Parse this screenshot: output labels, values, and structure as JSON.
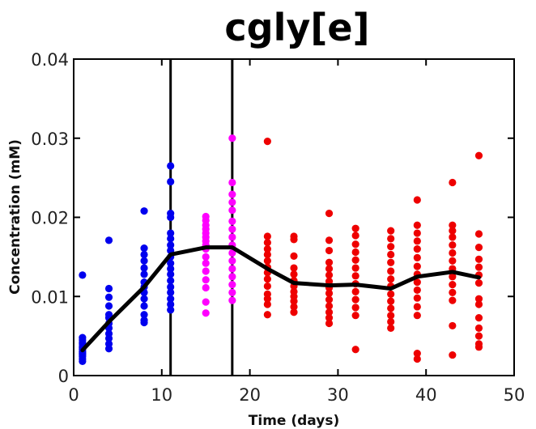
{
  "chart_data": {
    "type": "scatter",
    "title": "cgly[e]",
    "xlabel": "Time (days)",
    "ylabel": "Concentration (mM)",
    "xlim": [
      0,
      50
    ],
    "ylim": [
      0,
      0.04
    ],
    "x_ticks": [
      0,
      10,
      20,
      30,
      40,
      50
    ],
    "y_ticks": [
      0,
      0.01,
      0.02,
      0.03,
      0.04
    ],
    "x_tick_labels": [
      "0",
      "10",
      "20",
      "30",
      "40",
      "50"
    ],
    "y_tick_labels": [
      "0",
      "0.01",
      "0.02",
      "0.03",
      "0.04"
    ],
    "grid": false,
    "legend": "none",
    "vertical_lines": [
      11,
      18
    ],
    "colors": {
      "blue": "#0000ee",
      "magenta": "#ff00ff",
      "red": "#ee0000",
      "line": "#000000"
    },
    "series": [
      {
        "color": "blue",
        "points": [
          [
            1,
            0.0127
          ],
          [
            1,
            0.0048
          ],
          [
            1,
            0.0045
          ],
          [
            1,
            0.0042
          ],
          [
            1,
            0.004
          ],
          [
            1,
            0.0037
          ],
          [
            1,
            0.0035
          ],
          [
            1,
            0.0033
          ],
          [
            1,
            0.003
          ],
          [
            1,
            0.0028
          ],
          [
            1,
            0.0026
          ],
          [
            1,
            0.0024
          ],
          [
            1,
            0.0021
          ],
          [
            1,
            0.0018
          ],
          [
            4,
            0.0171
          ],
          [
            4,
            0.011
          ],
          [
            4,
            0.0099
          ],
          [
            4,
            0.0088
          ],
          [
            4,
            0.0077
          ],
          [
            4,
            0.0073
          ],
          [
            4,
            0.0066
          ],
          [
            4,
            0.006
          ],
          [
            4,
            0.0053
          ],
          [
            4,
            0.0047
          ],
          [
            4,
            0.004
          ],
          [
            4,
            0.0034
          ],
          [
            8,
            0.0208
          ],
          [
            8,
            0.0161
          ],
          [
            8,
            0.0153
          ],
          [
            8,
            0.0145
          ],
          [
            8,
            0.0136
          ],
          [
            8,
            0.0128
          ],
          [
            8,
            0.0118
          ],
          [
            8,
            0.0112
          ],
          [
            8,
            0.0105
          ],
          [
            8,
            0.0097
          ],
          [
            8,
            0.0088
          ],
          [
            8,
            0.0077
          ],
          [
            8,
            0.007
          ],
          [
            8,
            0.0067
          ],
          [
            11,
            0.0265
          ],
          [
            11,
            0.0245
          ],
          [
            11,
            0.0205
          ],
          [
            11,
            0.02
          ],
          [
            11,
            0.018
          ],
          [
            11,
            0.0173
          ],
          [
            11,
            0.0165
          ],
          [
            11,
            0.0158
          ],
          [
            11,
            0.015
          ],
          [
            11,
            0.0142
          ],
          [
            11,
            0.0135
          ],
          [
            11,
            0.0128
          ],
          [
            11,
            0.012
          ],
          [
            11,
            0.0112
          ],
          [
            11,
            0.0105
          ],
          [
            11,
            0.0097
          ],
          [
            11,
            0.009
          ],
          [
            11,
            0.0083
          ]
        ]
      },
      {
        "color": "magenta",
        "points": [
          [
            15,
            0.0201
          ],
          [
            15,
            0.0196
          ],
          [
            15,
            0.019
          ],
          [
            15,
            0.0185
          ],
          [
            15,
            0.018
          ],
          [
            15,
            0.0175
          ],
          [
            15,
            0.017
          ],
          [
            15,
            0.0165
          ],
          [
            15,
            0.016
          ],
          [
            15,
            0.015
          ],
          [
            15,
            0.0142
          ],
          [
            15,
            0.0132
          ],
          [
            15,
            0.0121
          ],
          [
            15,
            0.0111
          ],
          [
            15,
            0.0093
          ],
          [
            15,
            0.0079
          ],
          [
            18,
            0.03
          ],
          [
            18,
            0.0244
          ],
          [
            18,
            0.0229
          ],
          [
            18,
            0.0219
          ],
          [
            18,
            0.0209
          ],
          [
            18,
            0.0195
          ],
          [
            18,
            0.0185
          ],
          [
            18,
            0.0175
          ],
          [
            18,
            0.0165
          ],
          [
            18,
            0.0155
          ],
          [
            18,
            0.0145
          ],
          [
            18,
            0.0135
          ],
          [
            18,
            0.0125
          ],
          [
            18,
            0.0115
          ],
          [
            18,
            0.0105
          ],
          [
            18,
            0.0095
          ]
        ]
      },
      {
        "color": "red",
        "points": [
          [
            22,
            0.0296
          ],
          [
            22,
            0.0176
          ],
          [
            22,
            0.0168
          ],
          [
            22,
            0.016
          ],
          [
            22,
            0.0153
          ],
          [
            22,
            0.0145
          ],
          [
            22,
            0.0137
          ],
          [
            22,
            0.013
          ],
          [
            22,
            0.0122
          ],
          [
            22,
            0.0113
          ],
          [
            22,
            0.0103
          ],
          [
            22,
            0.0097
          ],
          [
            22,
            0.009
          ],
          [
            22,
            0.0077
          ],
          [
            25,
            0.0176
          ],
          [
            25,
            0.0172
          ],
          [
            25,
            0.0151
          ],
          [
            25,
            0.0136
          ],
          [
            25,
            0.0128
          ],
          [
            25,
            0.012
          ],
          [
            25,
            0.0113
          ],
          [
            25,
            0.0106
          ],
          [
            25,
            0.01
          ],
          [
            25,
            0.0094
          ],
          [
            25,
            0.0087
          ],
          [
            25,
            0.008
          ],
          [
            29,
            0.0205
          ],
          [
            29,
            0.0171
          ],
          [
            29,
            0.0158
          ],
          [
            29,
            0.0143
          ],
          [
            29,
            0.0135
          ],
          [
            29,
            0.0127
          ],
          [
            29,
            0.0119
          ],
          [
            29,
            0.0111
          ],
          [
            29,
            0.0104
          ],
          [
            29,
            0.0096
          ],
          [
            29,
            0.0088
          ],
          [
            29,
            0.008
          ],
          [
            29,
            0.0073
          ],
          [
            29,
            0.0066
          ],
          [
            32,
            0.0186
          ],
          [
            32,
            0.0177
          ],
          [
            32,
            0.0166
          ],
          [
            32,
            0.0156
          ],
          [
            32,
            0.0146
          ],
          [
            32,
            0.0136
          ],
          [
            32,
            0.0126
          ],
          [
            32,
            0.0116
          ],
          [
            32,
            0.0106
          ],
          [
            32,
            0.0096
          ],
          [
            32,
            0.0086
          ],
          [
            32,
            0.0076
          ],
          [
            32,
            0.0033
          ],
          [
            36,
            0.0183
          ],
          [
            36,
            0.0173
          ],
          [
            36,
            0.0163
          ],
          [
            36,
            0.0153
          ],
          [
            36,
            0.0143
          ],
          [
            36,
            0.0132
          ],
          [
            36,
            0.0122
          ],
          [
            36,
            0.0113
          ],
          [
            36,
            0.0103
          ],
          [
            36,
            0.0094
          ],
          [
            36,
            0.0085
          ],
          [
            36,
            0.0076
          ],
          [
            36,
            0.0068
          ],
          [
            36,
            0.006
          ],
          [
            39,
            0.0222
          ],
          [
            39,
            0.019
          ],
          [
            39,
            0.018
          ],
          [
            39,
            0.017
          ],
          [
            39,
            0.016
          ],
          [
            39,
            0.0149
          ],
          [
            39,
            0.0138
          ],
          [
            39,
            0.0128
          ],
          [
            39,
            0.0118
          ],
          [
            39,
            0.0108
          ],
          [
            39,
            0.0098
          ],
          [
            39,
            0.0087
          ],
          [
            39,
            0.0076
          ],
          [
            39,
            0.0028
          ],
          [
            39,
            0.0021
          ],
          [
            43,
            0.0244
          ],
          [
            43,
            0.019
          ],
          [
            43,
            0.0183
          ],
          [
            43,
            0.0175
          ],
          [
            43,
            0.0165
          ],
          [
            43,
            0.0155
          ],
          [
            43,
            0.0145
          ],
          [
            43,
            0.0135
          ],
          [
            43,
            0.0125
          ],
          [
            43,
            0.0115
          ],
          [
            43,
            0.0105
          ],
          [
            43,
            0.0095
          ],
          [
            43,
            0.0063
          ],
          [
            43,
            0.0026
          ],
          [
            46,
            0.0278
          ],
          [
            46,
            0.0179
          ],
          [
            46,
            0.0162
          ],
          [
            46,
            0.0147
          ],
          [
            46,
            0.0137
          ],
          [
            46,
            0.0127
          ],
          [
            46,
            0.0117
          ],
          [
            46,
            0.0097
          ],
          [
            46,
            0.009
          ],
          [
            46,
            0.0073
          ],
          [
            46,
            0.006
          ],
          [
            46,
            0.005
          ],
          [
            46,
            0.004
          ],
          [
            46,
            0.0036
          ]
        ]
      }
    ],
    "mean_line": {
      "x": [
        1,
        4,
        8,
        11,
        15,
        18,
        22,
        25,
        29,
        32,
        36,
        39,
        43,
        46
      ],
      "y": [
        0.0032,
        0.0068,
        0.0112,
        0.0153,
        0.0162,
        0.0162,
        0.0135,
        0.0117,
        0.0114,
        0.0115,
        0.011,
        0.0125,
        0.0131,
        0.0124
      ]
    }
  }
}
